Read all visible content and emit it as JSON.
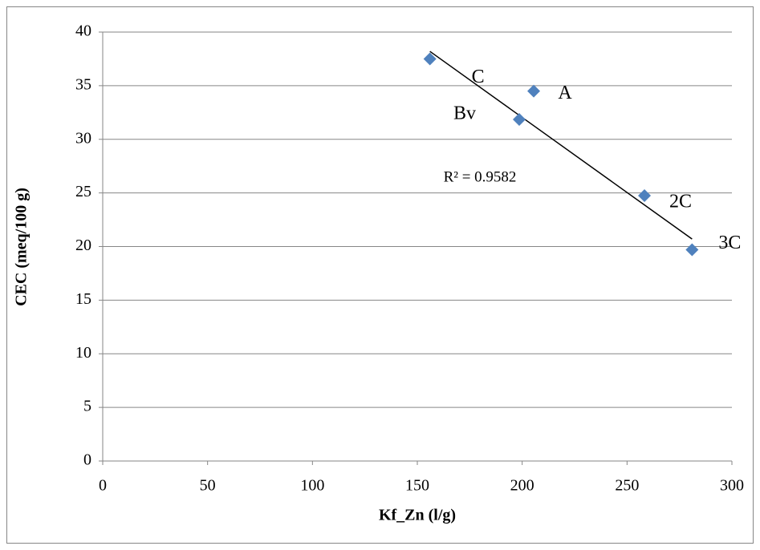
{
  "chart_data": {
    "type": "scatter",
    "xlabel": "Kf_Zn (l/g)",
    "ylabel": "CEC (meq/100 g)",
    "x": [
      156,
      205.5,
      198.6,
      258.3,
      281
    ],
    "y": [
      37.5,
      34.5,
      31.85,
      24.75,
      19.7
    ],
    "labels": [
      "C",
      "A",
      "Bv",
      "2C",
      "3C"
    ],
    "color": "#4f81bd",
    "trendline": {
      "x": [
        156,
        281
      ],
      "y": [
        38.2,
        20.7
      ],
      "color": "#000000",
      "annotation": "R² = 0.9582"
    },
    "xlim": [
      0,
      300
    ],
    "xticks": [
      0,
      50,
      100,
      150,
      200,
      250,
      300
    ],
    "ylim": [
      0,
      40
    ],
    "yticks": [
      0,
      5,
      10,
      15,
      20,
      25,
      30,
      35,
      40
    ],
    "grid": true
  }
}
